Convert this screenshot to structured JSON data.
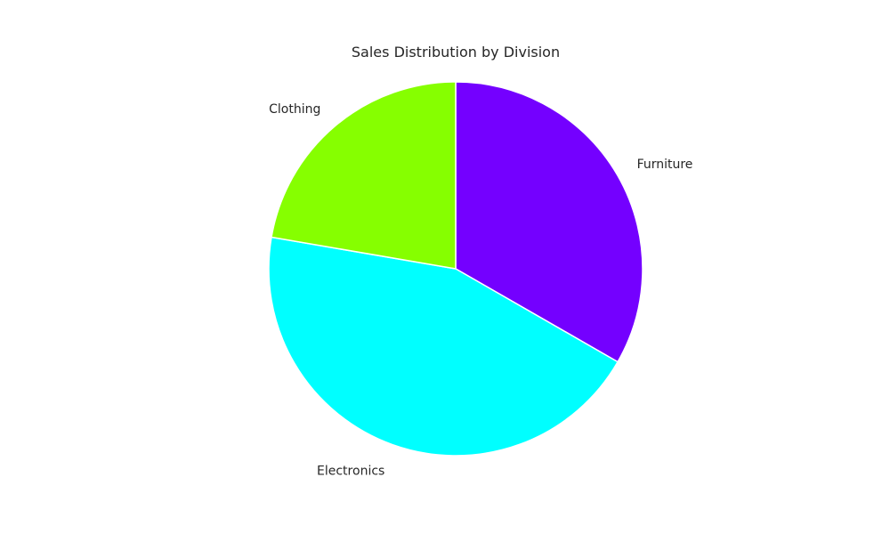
{
  "chart_data": {
    "type": "pie",
    "title": "Sales Distribution by Division",
    "categories": [
      "Furniture",
      "Electronics",
      "Clothing"
    ],
    "values": [
      33.3,
      44.4,
      22.3
    ],
    "colors": [
      "#7400ff",
      "#00ffff",
      "#86ff00"
    ],
    "start_angle": "top",
    "direction": "clockwise",
    "legend": "none"
  }
}
